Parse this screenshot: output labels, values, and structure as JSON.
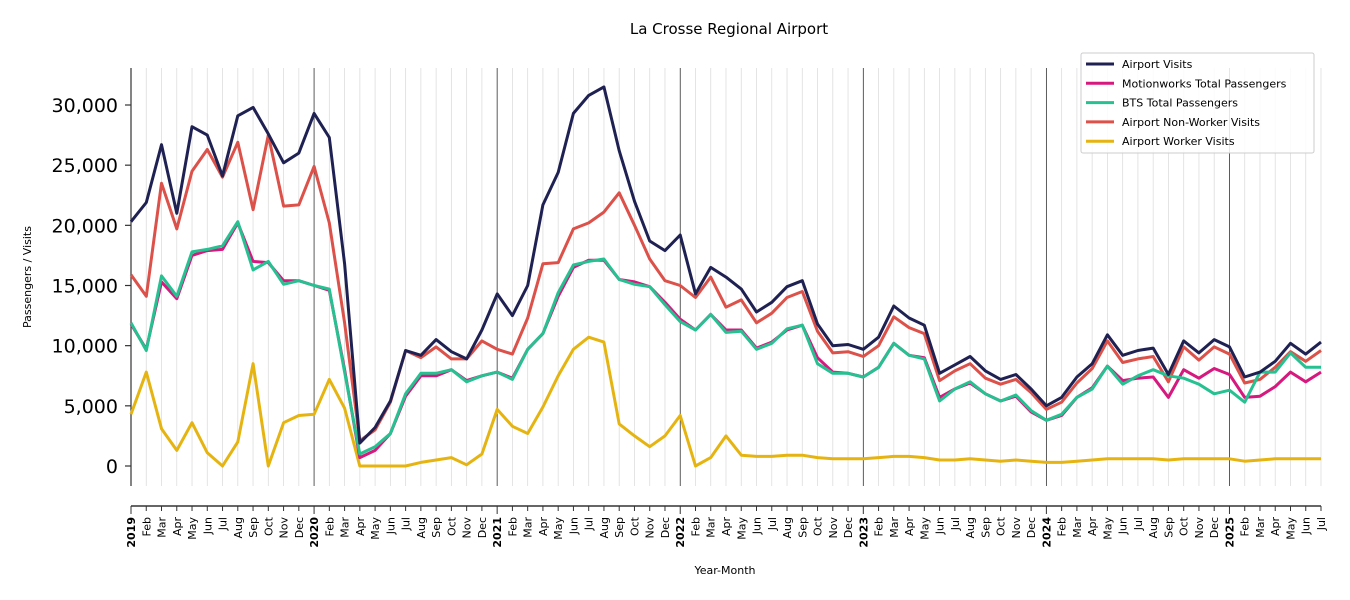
{
  "chart_data": {
    "type": "line",
    "title": "La Crosse Regional Airport",
    "xlabel": "Year-Month",
    "ylabel": "Passengers / Visits",
    "ylim": [
      -1500,
      33000
    ],
    "yticks": [
      0,
      5000,
      10000,
      15000,
      20000,
      25000,
      30000
    ],
    "ytick_labels": [
      "0",
      "5,000",
      "10,000",
      "15,000",
      "20,000",
      "25,000",
      "30,000"
    ],
    "grid": "vertical monthly light gridlines; darker lines at each January",
    "legend_position": "top-right",
    "x": [
      "2019-01",
      "2019-02",
      "2019-03",
      "2019-04",
      "2019-05",
      "2019-06",
      "2019-07",
      "2019-08",
      "2019-09",
      "2019-10",
      "2019-11",
      "2019-12",
      "2020-01",
      "2020-02",
      "2020-03",
      "2020-04",
      "2020-05",
      "2020-06",
      "2020-07",
      "2020-08",
      "2020-09",
      "2020-10",
      "2020-11",
      "2020-12",
      "2021-01",
      "2021-02",
      "2021-03",
      "2021-04",
      "2021-05",
      "2021-06",
      "2021-07",
      "2021-08",
      "2021-09",
      "2021-10",
      "2021-11",
      "2021-12",
      "2022-01",
      "2022-02",
      "2022-03",
      "2022-04",
      "2022-05",
      "2022-06",
      "2022-07",
      "2022-08",
      "2022-09",
      "2022-10",
      "2022-11",
      "2022-12",
      "2023-01",
      "2023-02",
      "2023-03",
      "2023-04",
      "2023-05",
      "2023-06",
      "2023-07",
      "2023-08",
      "2023-09",
      "2023-10",
      "2023-11",
      "2023-12",
      "2024-01",
      "2024-02",
      "2024-03",
      "2024-04",
      "2024-05",
      "2024-06",
      "2024-07",
      "2024-08",
      "2024-09",
      "2024-10",
      "2024-11",
      "2024-12",
      "2025-01",
      "2025-02",
      "2025-03",
      "2025-04",
      "2025-05",
      "2025-06",
      "2025-07"
    ],
    "xtick_labels": [
      "2019",
      "Feb",
      "Mar",
      "Apr",
      "May",
      "Jun",
      "Jul",
      "Aug",
      "Sep",
      "Oct",
      "Nov",
      "Dec",
      "2020",
      "Feb",
      "Mar",
      "Apr",
      "May",
      "Jun",
      "Jul",
      "Aug",
      "Sep",
      "Oct",
      "Nov",
      "Dec",
      "2021",
      "Feb",
      "Mar",
      "Apr",
      "May",
      "Jun",
      "Jul",
      "Aug",
      "Sep",
      "Oct",
      "Nov",
      "Dec",
      "2022",
      "Feb",
      "Mar",
      "Apr",
      "May",
      "Jun",
      "Jul",
      "Aug",
      "Sep",
      "Oct",
      "Nov",
      "Dec",
      "2023",
      "Feb",
      "Mar",
      "Apr",
      "May",
      "Jun",
      "Jul",
      "Aug",
      "Sep",
      "Oct",
      "Nov",
      "Dec",
      "2024",
      "Feb",
      "Mar",
      "Apr",
      "May",
      "Jun",
      "Jul",
      "Aug",
      "Sep",
      "Oct",
      "Nov",
      "Dec",
      "2025",
      "Feb",
      "Mar",
      "Apr",
      "May",
      "Jun",
      "Jul"
    ],
    "series": [
      {
        "name": "Airport Visits",
        "color": "#1f2152",
        "values": [
          20300,
          21900,
          26700,
          21000,
          28200,
          27500,
          24100,
          29100,
          29800,
          27600,
          25200,
          26000,
          29300,
          27300,
          16800,
          1900,
          3200,
          5400,
          9600,
          9200,
          10500,
          9500,
          8900,
          11300,
          14300,
          12500,
          15000,
          21700,
          24400,
          29300,
          30800,
          31500,
          26200,
          22000,
          18700,
          17900,
          19200,
          14300,
          16500,
          15700,
          14700,
          12800,
          13600,
          14900,
          15400,
          11800,
          10000,
          10100,
          9700,
          10700,
          13300,
          12300,
          11700,
          7700,
          8400,
          9100,
          7900,
          7200,
          7600,
          6400,
          5000,
          5700,
          7400,
          8500,
          10900,
          9200,
          9600,
          9800,
          7600,
          10400,
          9400,
          10500,
          9900,
          7400,
          7800,
          8700,
          10200,
          9300,
          10300
        ]
      },
      {
        "name": "Motionworks Total Passengers",
        "color": "#d6187f",
        "values": [
          11800,
          9700,
          15300,
          13900,
          17500,
          17900,
          18000,
          20200,
          17000,
          16900,
          15400,
          15400,
          15000,
          14600,
          8000,
          700,
          1300,
          2700,
          5800,
          7500,
          7500,
          8000,
          7100,
          7500,
          7800,
          7300,
          9700,
          11000,
          14100,
          16500,
          17100,
          17100,
          15500,
          15300,
          14900,
          13600,
          12200,
          11300,
          12600,
          11300,
          11300,
          9800,
          10300,
          11300,
          11700,
          9000,
          7800,
          7700,
          7400,
          8200,
          10200,
          9200,
          9000,
          5700,
          6400,
          6900,
          6000,
          5400,
          5800,
          4500,
          3800,
          4200,
          5700,
          6500,
          8300,
          7100,
          7300,
          7400,
          5700,
          8000,
          7300,
          8100,
          7600,
          5700,
          5800,
          6600,
          7800,
          7000,
          7800
        ]
      },
      {
        "name": "BTS Total Passengers",
        "color": "#26c191",
        "values": [
          11900,
          9600,
          15800,
          14100,
          17800,
          18000,
          18300,
          20300,
          16300,
          17000,
          15100,
          15400,
          15000,
          14700,
          7800,
          1000,
          1600,
          2700,
          6000,
          7700,
          7700,
          8000,
          7000,
          7500,
          7800,
          7200,
          9700,
          11000,
          14400,
          16700,
          17000,
          17200,
          15500,
          15100,
          14900,
          13400,
          12000,
          11300,
          12600,
          11100,
          11200,
          9700,
          10200,
          11400,
          11700,
          8500,
          7700,
          7700,
          7400,
          8200,
          10200,
          9200,
          8900,
          5400,
          6400,
          7000,
          6000,
          5400,
          5900,
          4600,
          3800,
          4300,
          5700,
          6400,
          8300,
          6800,
          7500,
          8000,
          7500,
          7300,
          6800,
          6000,
          6300,
          5300,
          7800,
          7800,
          9400,
          8200,
          8200
        ]
      },
      {
        "name": "Airport Non-Worker Visits",
        "color": "#dc5149",
        "values": [
          15900,
          14100,
          23500,
          19700,
          24500,
          26300,
          24000,
          26900,
          21300,
          27500,
          21600,
          21700,
          24900,
          20200,
          11900,
          2100,
          3000,
          5300,
          9600,
          9000,
          9900,
          8900,
          8900,
          10400,
          9700,
          9300,
          12300,
          16800,
          16900,
          19700,
          20200,
          21100,
          22700,
          20000,
          17200,
          15400,
          15000,
          14000,
          15700,
          13200,
          13800,
          11900,
          12700,
          14000,
          14500,
          11200,
          9400,
          9500,
          9100,
          10000,
          12400,
          11500,
          11000,
          7100,
          7900,
          8500,
          7300,
          6800,
          7200,
          6100,
          4700,
          5300,
          6900,
          8100,
          10400,
          8600,
          8900,
          9100,
          7000,
          9900,
          8800,
          9900,
          9300,
          6900,
          7200,
          8200,
          9500,
          8700,
          9600
        ]
      },
      {
        "name": "Airport Worker Visits",
        "color": "#e6b411",
        "values": [
          4300,
          7800,
          3100,
          1300,
          3600,
          1100,
          0,
          2000,
          8500,
          0,
          3600,
          4200,
          4300,
          7200,
          4800,
          0,
          0,
          0,
          0,
          300,
          500,
          700,
          100,
          1000,
          4700,
          3300,
          2700,
          4900,
          7500,
          9700,
          10700,
          10300,
          3500,
          2500,
          1600,
          2500,
          4200,
          0,
          700,
          2500,
          900,
          800,
          800,
          900,
          900,
          700,
          600,
          600,
          600,
          700,
          800,
          800,
          700,
          500,
          500,
          600,
          500,
          400,
          500,
          400,
          300,
          300,
          400,
          500,
          600,
          600,
          600,
          600,
          500,
          600,
          600,
          600,
          600,
          400,
          500,
          600,
          600,
          600,
          600
        ]
      }
    ]
  }
}
